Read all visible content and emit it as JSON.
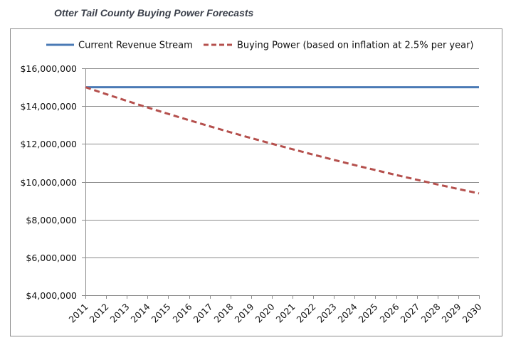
{
  "chart_data": {
    "type": "line",
    "title": "Otter Tail County Buying Power Forecasts",
    "xlabel": "",
    "ylabel": "",
    "x": [
      "2011",
      "2012",
      "2013",
      "2014",
      "2015",
      "2016",
      "2017",
      "2018",
      "2019",
      "2020",
      "2021",
      "2022",
      "2023",
      "2024",
      "2025",
      "2026",
      "2027",
      "2028",
      "2029",
      "2030"
    ],
    "ylim": [
      4000000,
      16000000
    ],
    "yticks": [
      4000000,
      6000000,
      8000000,
      10000000,
      12000000,
      14000000,
      16000000
    ],
    "ytick_labels": [
      "$4,000,000",
      "$6,000,000",
      "$8,000,000",
      "$10,000,000",
      "$12,000,000",
      "$14,000,000",
      "$16,000,000"
    ],
    "grid": true,
    "legend_position": "top",
    "series": [
      {
        "name": "Current Revenue Stream",
        "color": "#4a7ab5",
        "style": "solid",
        "values": [
          15000000,
          15000000,
          15000000,
          15000000,
          15000000,
          15000000,
          15000000,
          15000000,
          15000000,
          15000000,
          15000000,
          15000000,
          15000000,
          15000000,
          15000000,
          15000000,
          15000000,
          15000000,
          15000000,
          15000000
        ]
      },
      {
        "name": "Buying Power (based on inflation at 2.5% per year)",
        "color": "#b5504d",
        "style": "dashed",
        "values": [
          15000000,
          14634146,
          14277216,
          13928991,
          13589260,
          13257815,
          12934454,
          12618979,
          12311199,
          12010926,
          11717977,
          11432173,
          11153339,
          10881306,
          10615909,
          10356985,
          10104376,
          9857928,
          9617491,
          9382918
        ]
      }
    ]
  }
}
